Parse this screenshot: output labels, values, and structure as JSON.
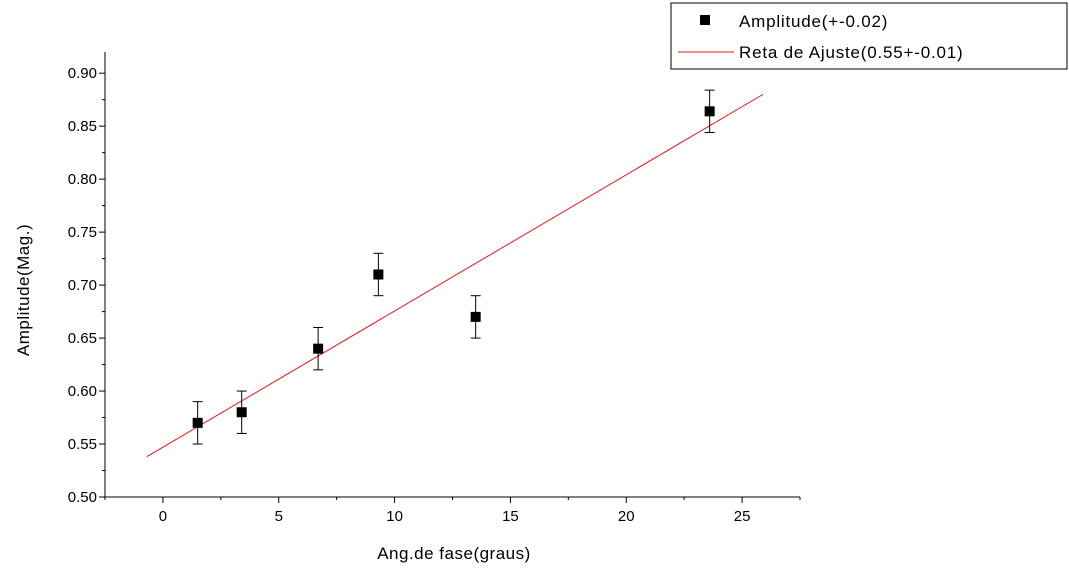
{
  "chart_data": {
    "type": "scatter",
    "xlabel": "Ang.de fase(graus)",
    "ylabel": "Amplitude(Mag.)",
    "xlim": [
      -2.5,
      27.5
    ],
    "ylim": [
      0.5,
      0.92
    ],
    "x_ticks": [
      0,
      5,
      10,
      15,
      20,
      25
    ],
    "x_tick_labels": [
      "0",
      "5",
      "10",
      "15",
      "20",
      "25"
    ],
    "y_ticks": [
      0.5,
      0.55,
      0.6,
      0.65,
      0.7,
      0.75,
      0.8,
      0.85,
      0.9
    ],
    "y_tick_labels": [
      "0.50",
      "0.55",
      "0.60",
      "0.65",
      "0.70",
      "0.75",
      "0.80",
      "0.85",
      "0.90"
    ],
    "grid": false,
    "legend_position": "top-right",
    "series": [
      {
        "name": "Amplitude(+-0.02)",
        "kind": "scatter",
        "marker": "square",
        "color": "#000000",
        "x": [
          1.5,
          3.4,
          6.7,
          9.3,
          13.5,
          23.6
        ],
        "y": [
          0.57,
          0.58,
          0.64,
          0.71,
          0.67,
          0.864
        ],
        "error": 0.02
      },
      {
        "name": "Reta de Ajuste(0.55+-0.01)",
        "kind": "line",
        "color": "#e8141e",
        "x": [
          -0.7,
          25.9
        ],
        "y": [
          0.538,
          0.88
        ]
      }
    ]
  }
}
